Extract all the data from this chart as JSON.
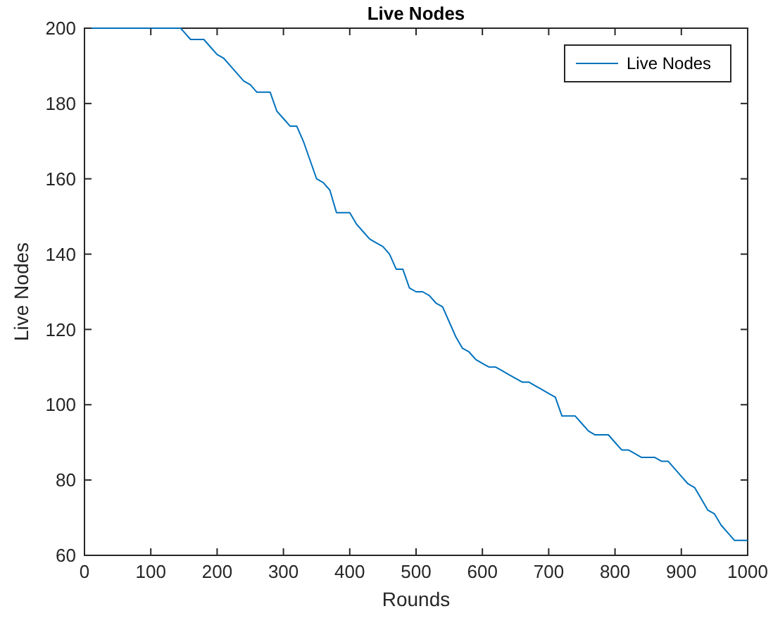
{
  "chart_data": {
    "type": "line",
    "title": "Live Nodes",
    "xlabel": "Rounds",
    "ylabel": "Live Nodes",
    "x": [
      0,
      145,
      150,
      160,
      180,
      190,
      200,
      210,
      220,
      230,
      240,
      250,
      260,
      280,
      290,
      300,
      310,
      320,
      330,
      340,
      350,
      360,
      370,
      380,
      400,
      410,
      420,
      430,
      440,
      450,
      460,
      470,
      480,
      490,
      500,
      510,
      520,
      530,
      540,
      550,
      560,
      570,
      580,
      590,
      600,
      610,
      620,
      630,
      640,
      650,
      660,
      670,
      680,
      690,
      700,
      710,
      720,
      740,
      750,
      760,
      770,
      790,
      800,
      810,
      820,
      830,
      840,
      860,
      870,
      880,
      890,
      900,
      910,
      920,
      930,
      940,
      950,
      960,
      970,
      980,
      1000
    ],
    "series": [
      {
        "name": "Live Nodes",
        "color": "#0072bd",
        "values": [
          200,
          200,
          199,
          197,
          197,
          195,
          193,
          192,
          190,
          188,
          186,
          185,
          183,
          183,
          178,
          176,
          174,
          174,
          170,
          165,
          160,
          159,
          157,
          151,
          151,
          148,
          146,
          144,
          143,
          142,
          140,
          136,
          136,
          131,
          130,
          130,
          129,
          127,
          126,
          122,
          118,
          115,
          114,
          112,
          111,
          110,
          110,
          109,
          108,
          107,
          106,
          106,
          105,
          104,
          103,
          102,
          97,
          97,
          95,
          93,
          92,
          92,
          90,
          88,
          88,
          87,
          86,
          86,
          85,
          85,
          83,
          81,
          79,
          78,
          75,
          72,
          71,
          68,
          66,
          64,
          64
        ]
      }
    ],
    "xlim": [
      0,
      1000
    ],
    "ylim": [
      60,
      200
    ],
    "xticks": [
      0,
      100,
      200,
      300,
      400,
      500,
      600,
      700,
      800,
      900,
      1000
    ],
    "yticks": [
      60,
      80,
      100,
      120,
      140,
      160,
      180,
      200
    ],
    "grid": false,
    "legend": "top right",
    "marker": "none",
    "line_style": "solid"
  }
}
